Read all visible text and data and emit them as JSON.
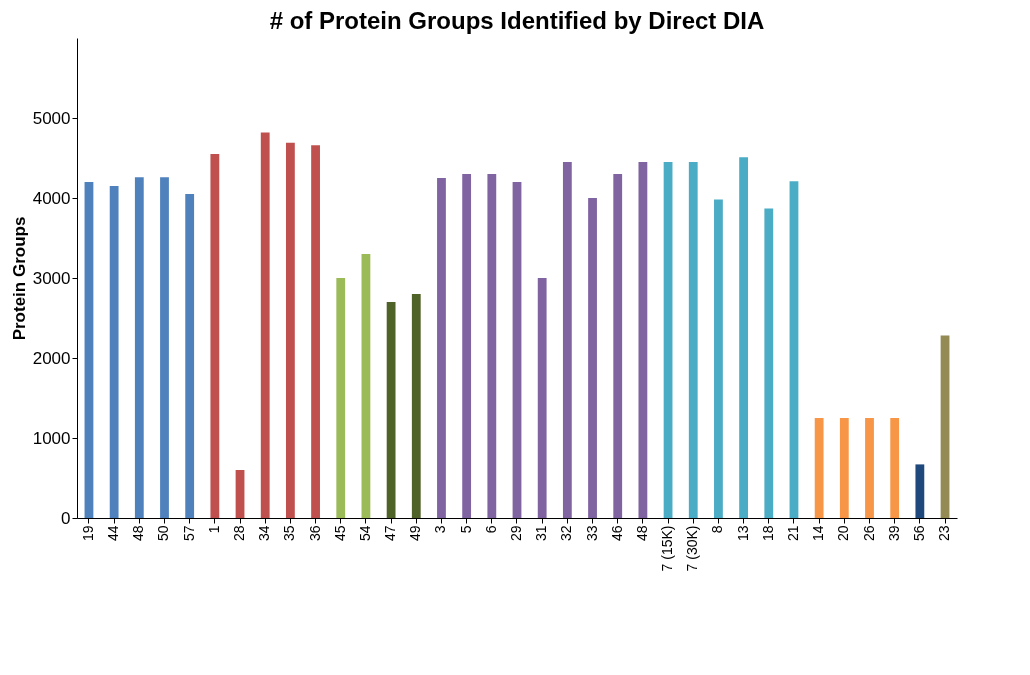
{
  "chart_data": {
    "type": "bar",
    "title": "# of Protein Groups Identified by Direct DIA",
    "ylabel": "Protein Groups",
    "categories": [
      "19",
      "44",
      "48",
      "50",
      "57",
      "1",
      "28",
      "34",
      "35",
      "36",
      "45",
      "54",
      "47",
      "49",
      "3",
      "5",
      "6",
      "29",
      "31",
      "32",
      "33",
      "46",
      "48",
      "7 (15K)",
      "7 (30K)",
      "8",
      "13",
      "18",
      "21",
      "14",
      "20",
      "26",
      "39",
      "56",
      "23"
    ],
    "values": [
      4200,
      4150,
      4260,
      4260,
      4050,
      4550,
      600,
      4820,
      4690,
      4660,
      3000,
      3300,
      2700,
      2800,
      4250,
      4300,
      4300,
      4200,
      3000,
      4450,
      4000,
      4300,
      4450,
      4450,
      4450,
      3980,
      4510,
      3870,
      4210,
      1250,
      1250,
      1250,
      1250,
      670,
      2280
    ],
    "colors": [
      "#4f81bd",
      "#4f81bd",
      "#4f81bd",
      "#4f81bd",
      "#4f81bd",
      "#c0504d",
      "#c0504d",
      "#c0504d",
      "#c0504d",
      "#c0504d",
      "#9bbb59",
      "#9bbb59",
      "#4f6228",
      "#4f6228",
      "#8064a2",
      "#8064a2",
      "#8064a2",
      "#8064a2",
      "#8064a2",
      "#8064a2",
      "#8064a2",
      "#8064a2",
      "#8064a2",
      "#4bacc6",
      "#4bacc6",
      "#4bacc6",
      "#4bacc6",
      "#4bacc6",
      "#4bacc6",
      "#f79646",
      "#f79646",
      "#f79646",
      "#f79646",
      "#1f497d",
      "#948a54"
    ],
    "ylim": [
      0,
      6000
    ],
    "yticks": [
      0,
      1000,
      2000,
      3000,
      4000,
      5000
    ],
    "grid": false,
    "legend": false
  }
}
